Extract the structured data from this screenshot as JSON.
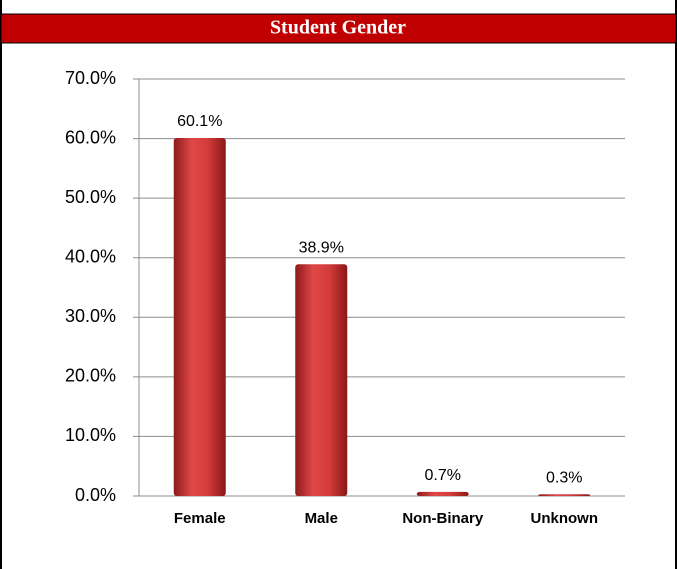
{
  "chart_data": {
    "type": "bar",
    "title": "Student Gender",
    "categories": [
      "Female",
      "Male",
      "Non-Binary",
      "Unknown"
    ],
    "values": [
      60.1,
      38.9,
      0.7,
      0.3
    ],
    "value_labels": [
      "60.1%",
      "38.9%",
      "0.7%",
      "0.3%"
    ],
    "color": "#d23c3c",
    "ylim": [
      0,
      70
    ],
    "yticks": [
      {
        "value": 0,
        "label": "0.0%"
      },
      {
        "value": 10,
        "label": "10.0%"
      },
      {
        "value": 20,
        "label": "20.0%"
      },
      {
        "value": 30,
        "label": "30.0%"
      },
      {
        "value": 40,
        "label": "40.0%"
      },
      {
        "value": 50,
        "label": "50.0%"
      },
      {
        "value": 60,
        "label": "60.0%"
      },
      {
        "value": 70,
        "label": "70.0%"
      }
    ],
    "grid": true
  }
}
